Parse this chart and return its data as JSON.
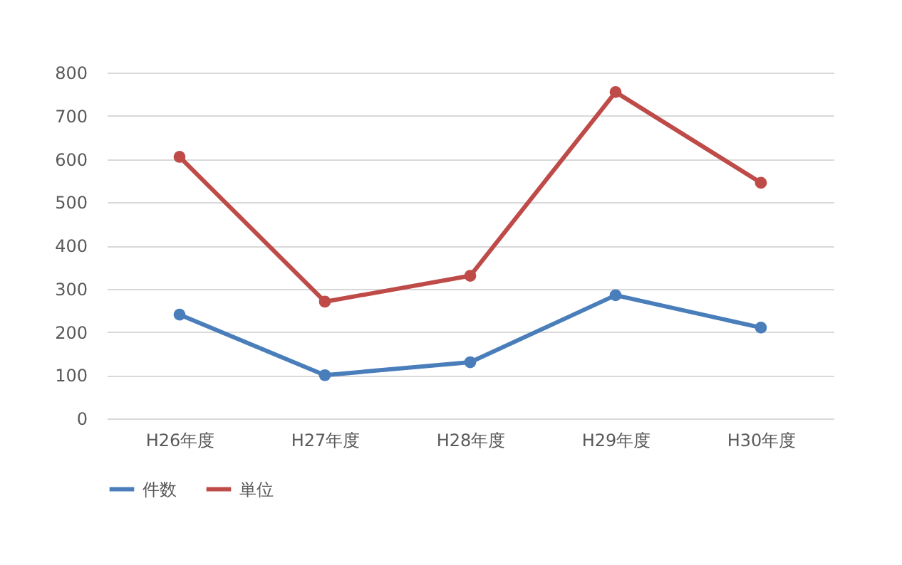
{
  "chart_data": {
    "type": "line",
    "categories": [
      "H26年度",
      "H27年度",
      "H28年度",
      "H29年度",
      "H30年度"
    ],
    "series": [
      {
        "name": "件数",
        "color": "#4a7ebb",
        "values": [
          240,
          100,
          130,
          285,
          210
        ]
      },
      {
        "name": "単位",
        "color": "#be4b48",
        "values": [
          605,
          270,
          330,
          755,
          545
        ]
      }
    ],
    "ylim": [
      0,
      800
    ],
    "yticks": [
      0,
      100,
      200,
      300,
      400,
      500,
      600,
      700,
      800
    ],
    "grid": "y",
    "legend": "bottom",
    "marker": "circle",
    "line_style": "solid"
  }
}
